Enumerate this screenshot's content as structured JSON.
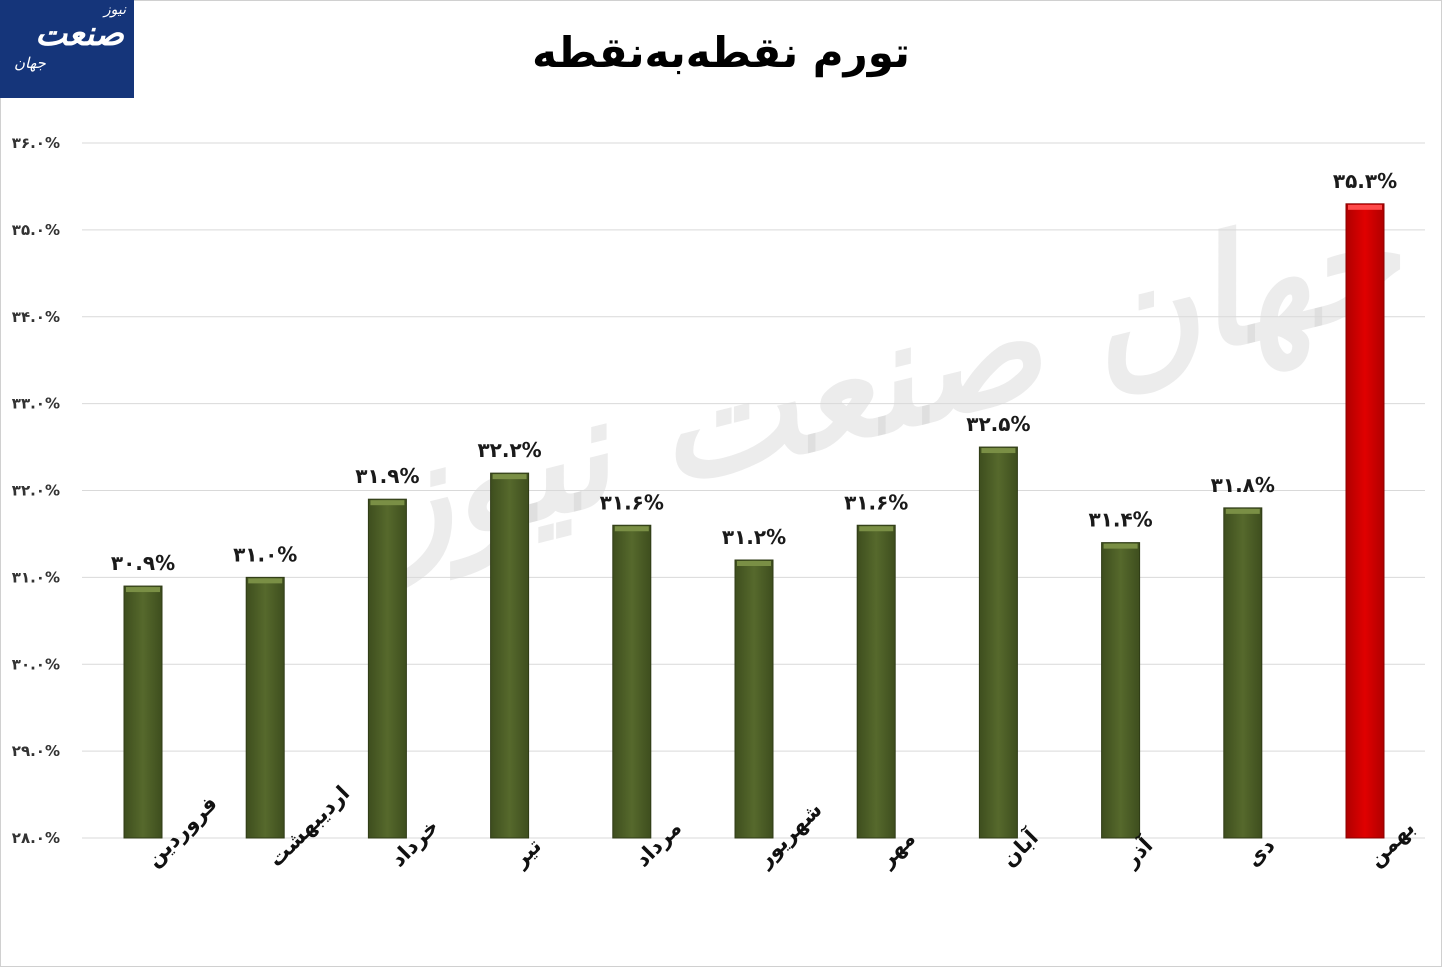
{
  "logo": {
    "brand_main": "صنعت",
    "brand_sub": "جهان",
    "brand_corner": "نیوز"
  },
  "watermark": "جهان صنعت نیوز",
  "chart_data": {
    "type": "bar",
    "title": "تورم نقطه‌به‌نقطه",
    "categories": [
      "فروردین",
      "اردیبهشت",
      "خرداد",
      "تیر",
      "مرداد",
      "شهریور",
      "مهر",
      "آبان",
      "آذر",
      "دی",
      "بهمن"
    ],
    "values": [
      30.9,
      31.0,
      31.9,
      32.2,
      31.6,
      31.2,
      31.6,
      32.5,
      31.4,
      31.8,
      35.3
    ],
    "data_labels": [
      "۳۰.۹%",
      "۳۱.۰%",
      "۳۱.۹%",
      "۳۲.۲%",
      "۳۱.۶%",
      "۳۱.۲%",
      "۳۱.۶%",
      "۳۲.۵%",
      "۳۱.۴%",
      "۳۱.۸%",
      "۳۵.۳%"
    ],
    "y_tick_values": [
      28,
      29,
      30,
      31,
      32,
      33,
      34,
      35,
      36
    ],
    "y_tick_labels": [
      "۲۸.۰%",
      "۲۹.۰%",
      "۳۰.۰%",
      "۳۱.۰%",
      "۳۲.۰%",
      "۳۳.۰%",
      "۳۴.۰%",
      "۳۵.۰%",
      "۳۶.۰%"
    ],
    "ylim": [
      28,
      36
    ],
    "grid": true,
    "colors": {
      "default_bar": "#4f6228",
      "highlight_bar": "#d40000",
      "highlight_index": 10
    }
  }
}
